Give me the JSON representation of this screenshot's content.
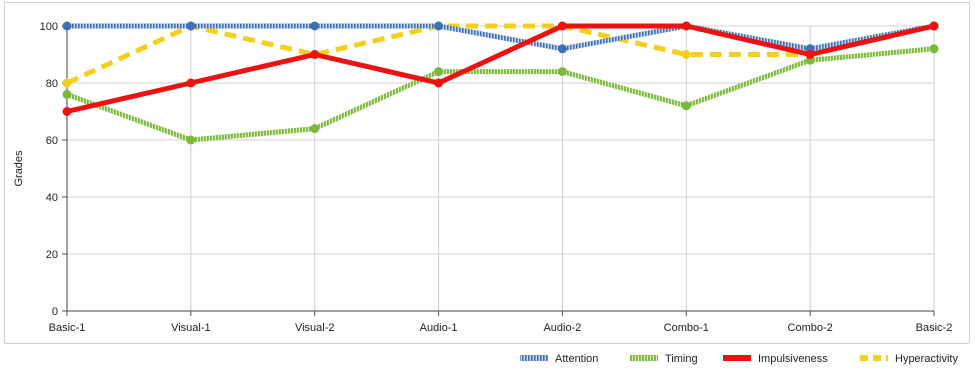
{
  "chart_data": {
    "type": "line",
    "title": "",
    "xlabel": "",
    "ylabel": "Grades",
    "ylim": [
      0,
      100
    ],
    "yticks": [
      0,
      20,
      40,
      60,
      80,
      100
    ],
    "grid": true,
    "legend_position": "bottom-right",
    "categories": [
      "Basic-1",
      "Visual-1",
      "Visual-2",
      "Audio-1",
      "Audio-2",
      "Combo-1",
      "Combo-2",
      "Basic-2"
    ],
    "series": [
      {
        "name": "Attention",
        "values": [
          100,
          100,
          100,
          100,
          92,
          100,
          92,
          100
        ],
        "color": "#3f6fb5",
        "line_style": "striped",
        "marker_color": "#3f6fb5"
      },
      {
        "name": "Timing",
        "values": [
          76,
          60,
          64,
          84,
          84,
          72,
          88,
          92
        ],
        "color": "#7cb83a",
        "line_style": "striped",
        "marker_color": "#7cb83a"
      },
      {
        "name": "Impulsiveness",
        "values": [
          70,
          80,
          90,
          80,
          100,
          100,
          90,
          100
        ],
        "color": "#ee1111",
        "line_style": "solid",
        "marker_color": "#ee1111"
      },
      {
        "name": "Hyperactivity",
        "values": [
          80,
          100,
          90,
          100,
          100,
          90,
          90,
          100
        ],
        "color": "#f5cf1e",
        "line_style": "dashed",
        "marker_color": "#f5cf1e"
      }
    ]
  }
}
